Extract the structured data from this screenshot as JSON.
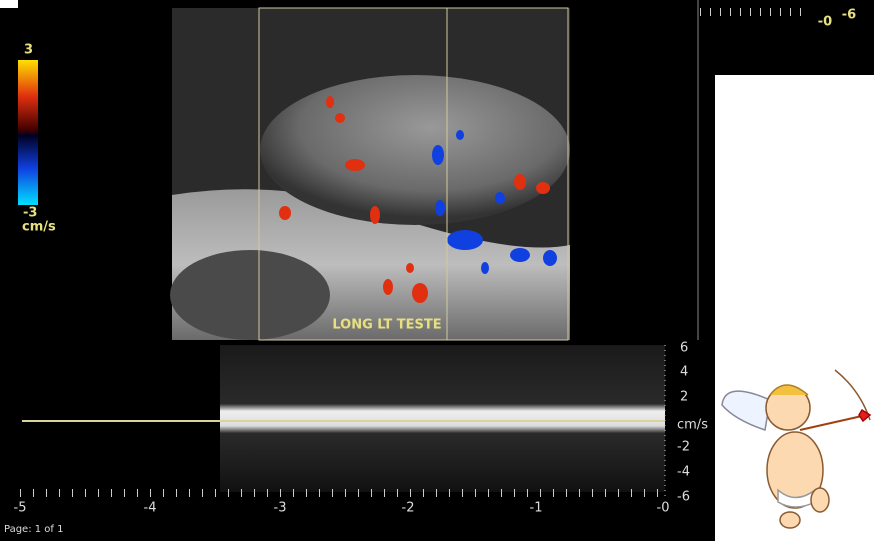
{
  "color_bar": {
    "max": "3",
    "min": "-3",
    "unit": "cm/s"
  },
  "image_label": "LONG LT TESTE",
  "top_scale": [
    "-0",
    "-6"
  ],
  "spectrum_scale": [
    "6",
    "4",
    "2",
    "-2",
    "-4",
    "-6"
  ],
  "spectrum_unit": "cm/s",
  "time_axis": [
    "-5",
    "-4",
    "-3",
    "-2",
    "-1",
    "-0"
  ],
  "footer": "Page: 1 of 1"
}
